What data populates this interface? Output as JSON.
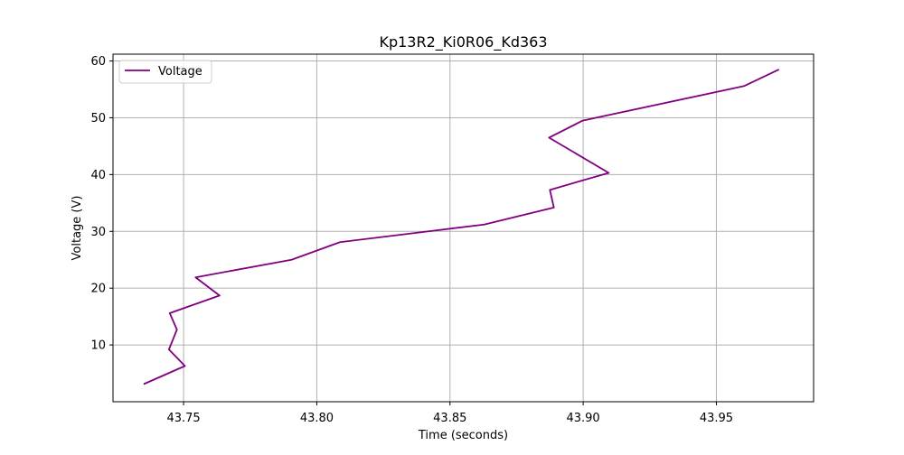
{
  "chart_data": {
    "type": "line",
    "title": "Kp13R2_Ki0R06_Kd363",
    "xlabel": "Time (seconds)",
    "ylabel": "Voltage (V)",
    "xlim": [
      43.7235,
      43.9865
    ],
    "ylim": [
      0.0,
      61.2
    ],
    "xticks": [
      43.75,
      43.8,
      43.85,
      43.9,
      43.95
    ],
    "xtick_labels": [
      "43.75",
      "43.80",
      "43.85",
      "43.90",
      "43.95"
    ],
    "yticks": [
      10,
      20,
      30,
      40,
      50,
      60
    ],
    "ytick_labels": [
      "10",
      "20",
      "30",
      "40",
      "50",
      "60"
    ],
    "grid": true,
    "legend_position": "upper-left",
    "series": [
      {
        "name": "Voltage",
        "color": "#800080",
        "x": [
          43.735,
          43.7505,
          43.7445,
          43.7475,
          43.7448,
          43.7635,
          43.7545,
          43.7905,
          43.8087,
          43.8628,
          43.889,
          43.8875,
          43.9096,
          43.8872,
          43.8998,
          43.9605,
          43.9735
        ],
        "y": [
          3.1,
          6.3,
          9.2,
          12.7,
          15.6,
          18.7,
          21.9,
          25.0,
          28.1,
          31.2,
          34.2,
          37.3,
          40.3,
          46.5,
          49.5,
          55.6,
          58.5
        ]
      }
    ]
  }
}
